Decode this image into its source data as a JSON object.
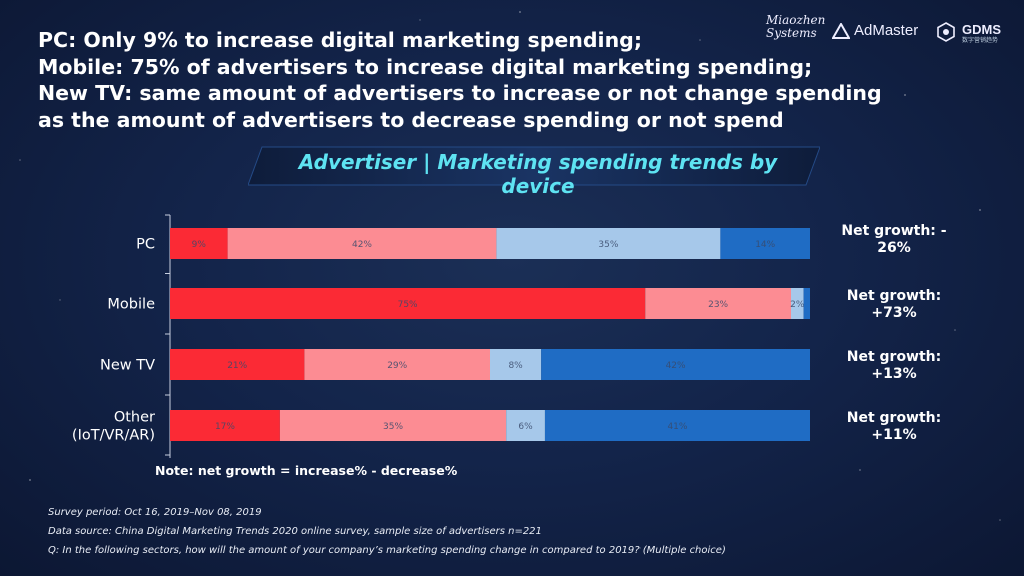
{
  "headline": {
    "lines": [
      "PC: Only 9% to increase digital marketing spending;",
      "Mobile: 75% of advertisers to increase digital marketing spending;",
      "New TV: same amount of advertisers to increase or not change spending",
      "as the amount of advertisers to decrease spending or not spend"
    ]
  },
  "logos": {
    "miaozhen": "Miaozhen Systems",
    "admaster": "AdMaster",
    "gdms": "GDMS",
    "gdms_sub": "数字营销趋势"
  },
  "banner_title": "Advertiser | Marketing spending trends by device",
  "colors": {
    "increase_much": "#fb2a35",
    "increase_little": "#fc8c93",
    "decrease": "#a6c8ea",
    "no_change": "#1f6cc4",
    "banner_text": "#5ee3f2"
  },
  "chart_data": {
    "type": "bar",
    "orientation": "horizontal",
    "stacked": true,
    "categories": [
      "PC",
      "Mobile",
      "New TV",
      "Other (IoT/VR/AR)"
    ],
    "category_lines": [
      [
        "PC"
      ],
      [
        "Mobile"
      ],
      [
        "New TV"
      ],
      [
        "Other",
        "(IoT/VR/AR)"
      ]
    ],
    "series": [
      {
        "color": "#fb2a35",
        "values": [
          9,
          75,
          21,
          17
        ],
        "labels": [
          "9%",
          "75%",
          "21%",
          "17%"
        ]
      },
      {
        "color": "#fc8c93",
        "values": [
          42,
          23,
          29,
          35
        ],
        "labels": [
          "42%",
          "23%",
          "29%",
          "35%"
        ]
      },
      {
        "color": "#a6c8ea",
        "values": [
          35,
          2,
          8,
          6
        ],
        "labels": [
          "35%",
          "2%",
          "8%",
          "6%"
        ]
      },
      {
        "color": "#1f6cc4",
        "values": [
          14,
          1,
          42,
          41
        ],
        "labels": [
          "14%",
          "",
          "42%",
          "41%"
        ]
      }
    ],
    "net_growth": [
      [
        "Net growth: -",
        "26%"
      ],
      [
        "Net growth:",
        "+73%"
      ],
      [
        "Net growth:",
        "+13%"
      ],
      [
        "Net growth:",
        "+11%"
      ]
    ],
    "note": "Note: net growth = increase% - decrease%"
  },
  "footnotes": [
    "Survey period: Oct 16, 2019–Nov 08, 2019",
    "Data source: China Digital Marketing Trends 2020 online survey, sample size of advertisers n=221",
    "Q: In the following sectors, how will the amount of your company’s marketing spending change in  compared to 2019? (Multiple choice)"
  ]
}
